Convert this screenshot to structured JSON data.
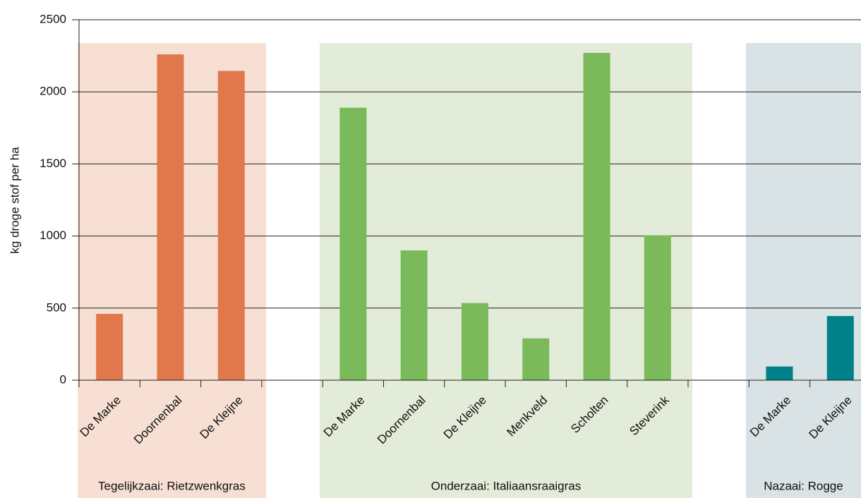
{
  "chart_data": {
    "type": "bar",
    "y_label": "kg droge stof per ha",
    "ylim": [
      0,
      2500
    ],
    "yticks": [
      0,
      500,
      1000,
      1500,
      2000,
      2500
    ],
    "grid": true,
    "groups": [
      {
        "label": "Tegelijkzaai: Rietzwenkgras",
        "color": "#e0784c",
        "band_color": "#f7dfd3",
        "categories": [
          "De Marke",
          "Doornenbal",
          "De Kleijne"
        ],
        "values": [
          460,
          2260,
          2145
        ]
      },
      {
        "label": "Onderzaai: Italiaansraaigras",
        "color": "#7aba5a",
        "band_color": "#e2ecd8",
        "categories": [
          "De Marke",
          "Doornenbal",
          "De Kleijne",
          "Menkveld",
          "Scholten",
          "Steverink"
        ],
        "values": [
          1890,
          900,
          535,
          290,
          2270,
          1005
        ]
      },
      {
        "label": "Nazaai: Rogge",
        "color": "#00818a",
        "band_color": "#d9e2e4",
        "categories": [
          "De Marke",
          "De Kleijne"
        ],
        "values": [
          95,
          445
        ]
      }
    ]
  }
}
